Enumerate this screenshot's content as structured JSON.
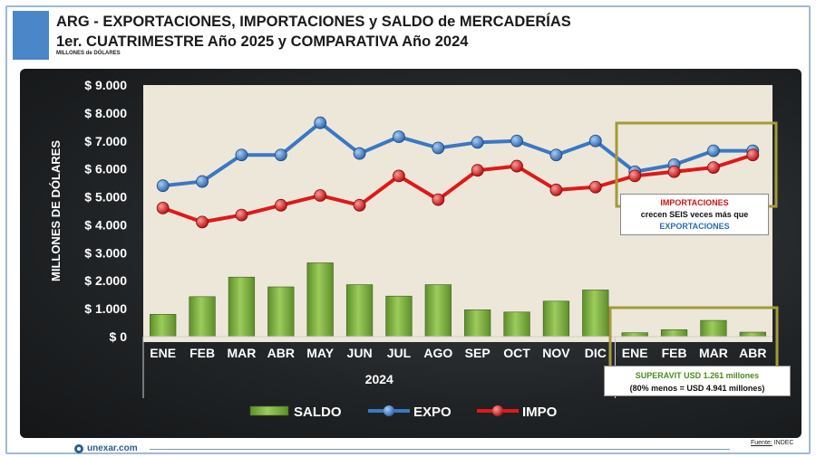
{
  "header": {
    "title_line1": "ARG - EXPORTACIONES, IMPORTACIONES y SALDO de MERCADERÍAS",
    "title_line2": "1er. CUATRIMESTRE Año 2025 y COMPARATIVA Año 2024",
    "units": "MILLONES de DÓLARES"
  },
  "chart_data": {
    "type": "bar",
    "ylabel": "MILLONES DE DÓLARES",
    "ylim": [
      0,
      9000
    ],
    "y_ticks": [
      "$ 0",
      "$ 1.000",
      "$ 2.000",
      "$ 3.000",
      "$ 4.000",
      "$ 5.000",
      "$ 6.000",
      "$ 7.000",
      "$ 8.000",
      "$ 9.000"
    ],
    "categories": [
      "ENE",
      "FEB",
      "MAR",
      "ABR",
      "MAY",
      "JUN",
      "JUL",
      "AGO",
      "SEP",
      "OCT",
      "NOV",
      "DIC",
      "ENE",
      "FEB",
      "MAR",
      "ABR"
    ],
    "year_label": "2024",
    "grid": false,
    "legend_position": "bottom",
    "series": [
      {
        "name": "SALDO",
        "kind": "bar",
        "color": "#7aab3c",
        "values": [
          800,
          1430,
          2130,
          1780,
          2640,
          1860,
          1450,
          1860,
          960,
          880,
          1270,
          1670,
          140,
          250,
          580,
          160
        ]
      },
      {
        "name": "EXPO",
        "kind": "line",
        "color": "#3a78c4",
        "values": [
          5400,
          5550,
          6500,
          6500,
          7650,
          6550,
          7150,
          6750,
          6950,
          7000,
          6500,
          7000,
          5900,
          6150,
          6650,
          6650
        ]
      },
      {
        "name": "IMPO",
        "kind": "line",
        "color": "#e01818",
        "values": [
          4600,
          4100,
          4350,
          4700,
          5050,
          4700,
          5750,
          4900,
          5950,
          6100,
          5250,
          5350,
          5750,
          5900,
          6050,
          6500
        ]
      }
    ]
  },
  "callouts": {
    "impo_title": "IMPORTACIONES",
    "impo_middle": "crecen SEIS veces más que",
    "impo_bottom": "EXPORTACIONES",
    "sup_title": "SUPERAVIT USD 1.261 millones",
    "sup_sub": "(80% menos = USD 4.941 millones)"
  },
  "footer": {
    "brand": "unexar.com",
    "source_label": "Fuente:",
    "source_value": "INDEC"
  }
}
